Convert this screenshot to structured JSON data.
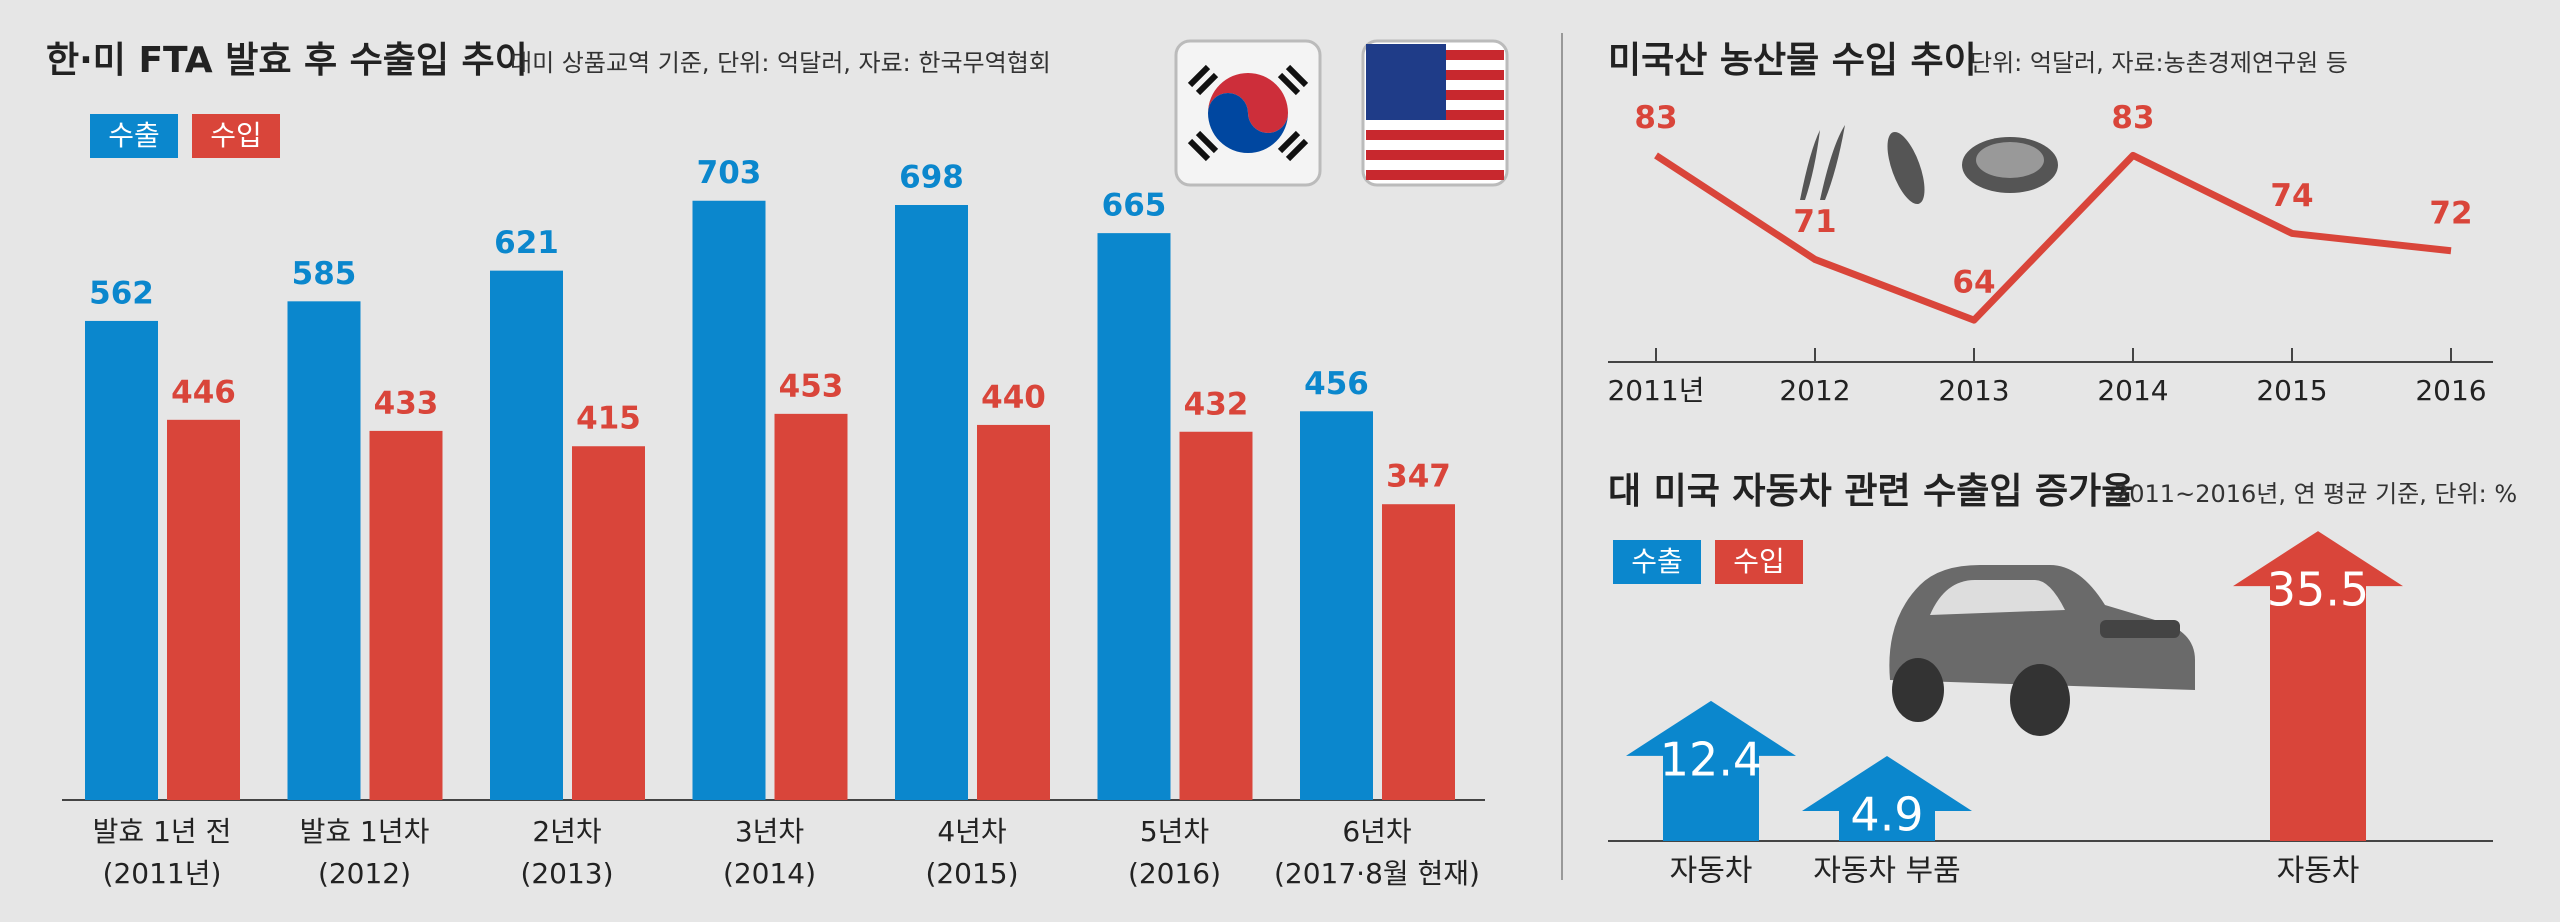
{
  "chart_data": [
    {
      "type": "bar",
      "title": "한·미 FTA 발효 후 수출입 추이",
      "subtitle": "대미 상품교역 기준, 단위: 억달러, 자료: 한국무역협회",
      "categories": [
        [
          "발효 1년 전",
          "(2011년)"
        ],
        [
          "발효 1년차",
          "(2012)"
        ],
        [
          "2년차",
          "(2013)"
        ],
        [
          "3년차",
          "(2014)"
        ],
        [
          "4년차",
          "(2015)"
        ],
        [
          "5년차",
          "(2016)"
        ],
        [
          "6년차",
          "(2017·8월 현재)"
        ]
      ],
      "series": [
        {
          "name": "수출",
          "color": "#0b87cd",
          "values": [
            562,
            585,
            621,
            703,
            698,
            665,
            456
          ]
        },
        {
          "name": "수입",
          "color": "#d9453a",
          "values": [
            446,
            433,
            415,
            453,
            440,
            432,
            347
          ]
        }
      ]
    },
    {
      "type": "line",
      "title": "미국산 농산물 수입 추이",
      "subtitle": "단위: 억달러, 자료:농촌경제연구원 등",
      "categories": [
        "2011년",
        "2012",
        "2013",
        "2014",
        "2015",
        "2016"
      ],
      "values": [
        83,
        71,
        64,
        83,
        74,
        72
      ],
      "color": "#d9453a"
    },
    {
      "type": "arrow",
      "title": "대 미국 자동차 관련 수출입 증가율",
      "subtitle": "2011~2016년, 연 평균 기준,  단위: %",
      "categories": [
        "자동차",
        "자동차 부품",
        "자동차"
      ],
      "series": [
        {
          "name": "수출",
          "color": "#0b87cd",
          "values": [
            12.4,
            4.9,
            null
          ]
        },
        {
          "name": "수입",
          "color": "#d9453a",
          "values": [
            null,
            null,
            35.5
          ]
        }
      ]
    }
  ]
}
